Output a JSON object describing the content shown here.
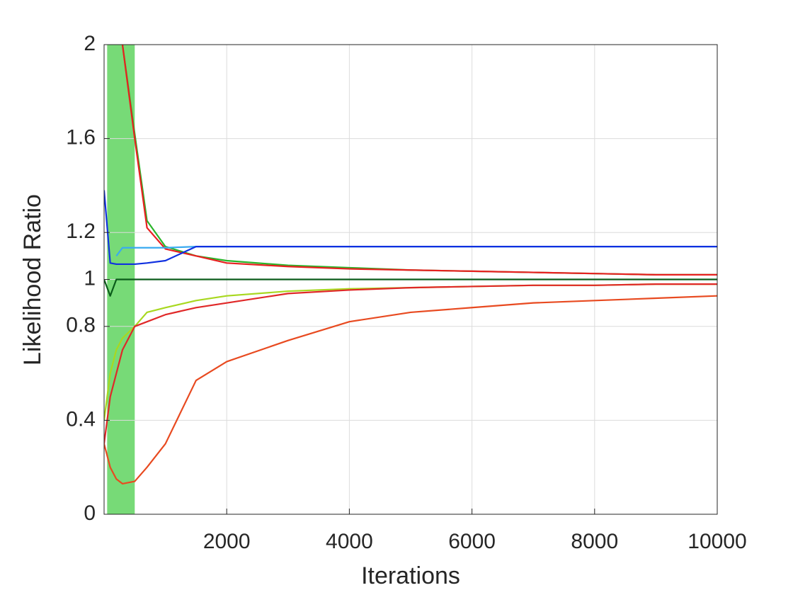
{
  "chart_data": {
    "type": "line",
    "xlabel": "Iterations",
    "ylabel": "Likelihood Ratio",
    "x": [
      0,
      100,
      200,
      300,
      500,
      700,
      1000,
      1500,
      2000,
      3000,
      4000,
      5000,
      6000,
      7000,
      8000,
      9000,
      10000
    ],
    "series": [
      {
        "color": "#2ab52a",
        "values": [
          null,
          null,
          null,
          2.0,
          1.62,
          1.25,
          1.14,
          1.1,
          1.08,
          1.06,
          1.05,
          1.04,
          1.035,
          1.03,
          1.025,
          1.02,
          1.02
        ]
      },
      {
        "color": "#e82020",
        "values": [
          null,
          null,
          null,
          2.0,
          1.6,
          1.22,
          1.13,
          1.1,
          1.07,
          1.055,
          1.045,
          1.04,
          1.035,
          1.03,
          1.025,
          1.02,
          1.02
        ]
      },
      {
        "color": "#0a5c1a",
        "values": [
          1.0,
          0.93,
          1.0,
          1.0,
          1.0,
          1.0,
          1.0,
          1.0,
          1.0,
          1.0,
          1.0,
          1.0,
          1.0,
          1.0,
          1.0,
          1.0,
          1.0
        ]
      },
      {
        "color": "#3aaaf0",
        "values": [
          null,
          null,
          1.1,
          1.135,
          1.135,
          1.135,
          1.135,
          1.14,
          1.14,
          1.14,
          1.14,
          1.14,
          1.14,
          1.14,
          1.14,
          1.14,
          1.14
        ]
      },
      {
        "color": "#1030e0",
        "values": [
          1.38,
          1.07,
          1.065,
          1.065,
          1.065,
          1.07,
          1.08,
          1.14,
          1.14,
          1.14,
          1.14,
          1.14,
          1.14,
          1.14,
          1.14,
          1.14,
          1.14
        ]
      },
      {
        "color": "#a8d820",
        "values": [
          0.4,
          0.6,
          0.7,
          0.75,
          0.8,
          0.86,
          0.88,
          0.91,
          0.93,
          0.95,
          0.96,
          0.965,
          0.97,
          0.975,
          0.975,
          0.98,
          0.98
        ]
      },
      {
        "color": "#e02828",
        "values": [
          0.3,
          0.5,
          0.6,
          0.7,
          0.8,
          0.82,
          0.85,
          0.88,
          0.9,
          0.94,
          0.955,
          0.965,
          0.97,
          0.975,
          0.975,
          0.98,
          0.98
        ]
      },
      {
        "color": "#e84a20",
        "values": [
          0.3,
          0.2,
          0.15,
          0.13,
          0.14,
          0.2,
          0.3,
          0.57,
          0.65,
          0.74,
          0.82,
          0.86,
          0.88,
          0.9,
          0.91,
          0.92,
          0.93
        ]
      }
    ],
    "band": {
      "x": [
        50,
        500
      ],
      "color": "#5fd35f"
    },
    "xlim": [
      0,
      10000
    ],
    "xticks": [
      2000,
      4000,
      6000,
      8000,
      10000
    ],
    "ylim": [
      0,
      2
    ],
    "yticks": [
      0,
      0.4,
      0.8,
      1,
      1.2,
      1.6,
      2
    ],
    "grid": true
  }
}
